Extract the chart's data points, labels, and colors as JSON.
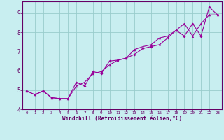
{
  "xlabel": "Windchill (Refroidissement éolien,°C)",
  "background_color": "#c8eef0",
  "grid_color": "#99cccc",
  "line_color": "#990099",
  "spine_color": "#660066",
  "xlim": [
    -0.5,
    23.5
  ],
  "ylim": [
    4.0,
    9.6
  ],
  "yticks": [
    4,
    5,
    6,
    7,
    8,
    9
  ],
  "xticks": [
    0,
    1,
    2,
    3,
    4,
    5,
    6,
    7,
    8,
    9,
    10,
    11,
    12,
    13,
    14,
    15,
    16,
    17,
    18,
    19,
    20,
    21,
    22,
    23
  ],
  "series1": [
    [
      0,
      4.95
    ],
    [
      1,
      4.75
    ],
    [
      2,
      4.95
    ],
    [
      3,
      4.6
    ],
    [
      4,
      4.55
    ],
    [
      5,
      4.55
    ],
    [
      6,
      5.4
    ],
    [
      7,
      5.2
    ],
    [
      8,
      5.95
    ],
    [
      9,
      5.85
    ],
    [
      10,
      6.5
    ],
    [
      11,
      6.55
    ],
    [
      12,
      6.65
    ],
    [
      13,
      6.85
    ],
    [
      14,
      7.15
    ],
    [
      15,
      7.25
    ],
    [
      16,
      7.35
    ],
    [
      17,
      7.7
    ],
    [
      18,
      8.1
    ],
    [
      19,
      7.8
    ],
    [
      20,
      8.45
    ],
    [
      21,
      7.8
    ],
    [
      22,
      9.3
    ],
    [
      23,
      8.9
    ]
  ],
  "series2": [
    [
      0,
      4.95
    ],
    [
      1,
      4.75
    ],
    [
      2,
      4.95
    ],
    [
      3,
      4.6
    ],
    [
      4,
      4.55
    ],
    [
      5,
      4.55
    ],
    [
      6,
      5.2
    ],
    [
      7,
      5.4
    ],
    [
      8,
      5.85
    ],
    [
      9,
      5.95
    ],
    [
      10,
      6.3
    ],
    [
      11,
      6.55
    ],
    [
      12,
      6.65
    ],
    [
      13,
      7.1
    ],
    [
      14,
      7.25
    ],
    [
      15,
      7.35
    ],
    [
      16,
      7.7
    ],
    [
      17,
      7.8
    ],
    [
      18,
      8.1
    ],
    [
      19,
      8.45
    ],
    [
      20,
      7.8
    ],
    [
      21,
      8.45
    ],
    [
      22,
      8.9
    ],
    [
      23,
      8.9
    ]
  ]
}
